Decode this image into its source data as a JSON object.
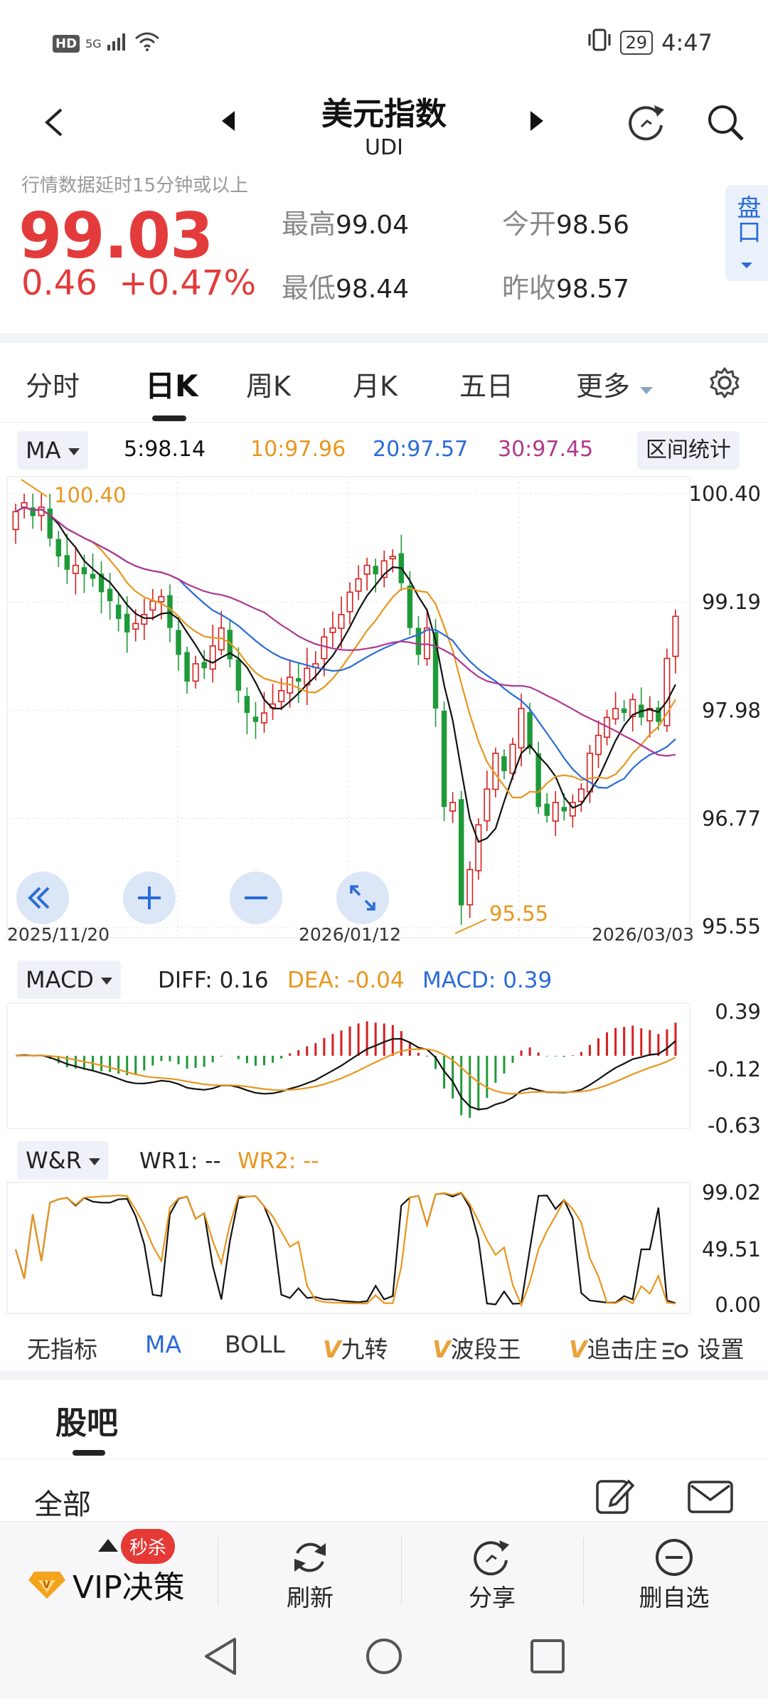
{
  "status_bar": {
    "hd": "HD",
    "network": "5G",
    "battery": "29",
    "time": "4:47"
  },
  "header": {
    "title": "美元指数",
    "code": "UDI"
  },
  "quote": {
    "delay_note": "行情数据延时15分钟或以上",
    "price": "99.03",
    "change": "0.46",
    "change_pct": "+0.47%",
    "high_label": "最高",
    "high": "99.04",
    "open_label": "今开",
    "open": "98.56",
    "low_label": "最低",
    "low": "98.44",
    "prev_close_label": "昨收",
    "prev_close": "98.57",
    "pankou": "盘口"
  },
  "tabs": [
    "分时",
    "日K",
    "周K",
    "月K",
    "五日",
    "更多"
  ],
  "ma_row": {
    "selector": "MA",
    "ma5": "5:98.14",
    "ma10": "10:97.96",
    "ma20": "20:97.57",
    "ma30": "30:97.45",
    "range_stats": "区间统计"
  },
  "colors": {
    "up": "#d81e1e",
    "down": "#1f9a3a",
    "ma5": "#111111",
    "ma10": "#e8961e",
    "ma20": "#2a6bd8",
    "ma30": "#b0378f",
    "accent": "#2a6bd8"
  },
  "chart_data": [
    {
      "type": "candlestick",
      "y_ticks": [
        "100.40",
        "99.19",
        "97.98",
        "96.77",
        "95.55"
      ],
      "ylim": [
        95.55,
        100.4
      ],
      "x_labels": [
        "2025/11/20",
        "2026/01/12",
        "2026/03/03"
      ],
      "annotations": {
        "max": "100.40",
        "min": "95.55"
      },
      "closes": [
        100.2,
        100.3,
        100.15,
        100.25,
        99.9,
        99.7,
        99.55,
        99.6,
        99.5,
        99.45,
        99.3,
        99.2,
        99.0,
        98.85,
        98.95,
        99.05,
        99.2,
        99.25,
        98.9,
        98.6,
        98.3,
        98.5,
        98.45,
        98.7,
        98.9,
        98.55,
        98.2,
        97.95,
        97.85,
        97.95,
        98.05,
        98.2,
        98.35,
        98.3,
        98.45,
        98.5,
        98.8,
        98.9,
        99.05,
        99.3,
        99.45,
        99.6,
        99.5,
        99.65,
        99.7,
        99.4,
        98.9,
        98.6,
        98.9,
        98.0,
        96.9,
        96.95,
        95.8,
        96.2,
        96.7,
        97.1,
        97.5,
        97.3,
        97.6,
        98.0,
        97.55,
        96.9,
        96.8,
        96.95,
        96.85,
        96.95,
        97.1,
        97.5,
        97.7,
        97.9,
        98.0,
        97.95,
        98.1,
        97.9,
        98.0,
        97.85,
        98.56,
        99.03
      ]
    },
    {
      "type": "bar",
      "indicator": "MACD",
      "diff_label": "DIFF: 0.16",
      "dea_label": "DEA: -0.04",
      "macd_label": "MACD: 0.39",
      "y_ticks": [
        "0.39",
        "-0.12",
        "-0.63"
      ],
      "ylim": [
        -0.63,
        0.39
      ]
    },
    {
      "type": "line",
      "indicator": "W&R",
      "wr1_label": "WR1: --",
      "wr2_label": "WR2: --",
      "y_ticks": [
        "99.02",
        "49.51",
        "0.00"
      ],
      "ylim": [
        0,
        99.02
      ]
    }
  ],
  "indicators": [
    "无指标",
    "MA",
    "BOLL",
    "九转",
    "波段王",
    "追击庄",
    "设置"
  ],
  "guba": {
    "title": "股吧",
    "filter": "全部"
  },
  "actions": {
    "vip": "VIP决策",
    "miaosha": "秒杀",
    "refresh": "刷新",
    "share": "分享",
    "remove": "删自选"
  }
}
